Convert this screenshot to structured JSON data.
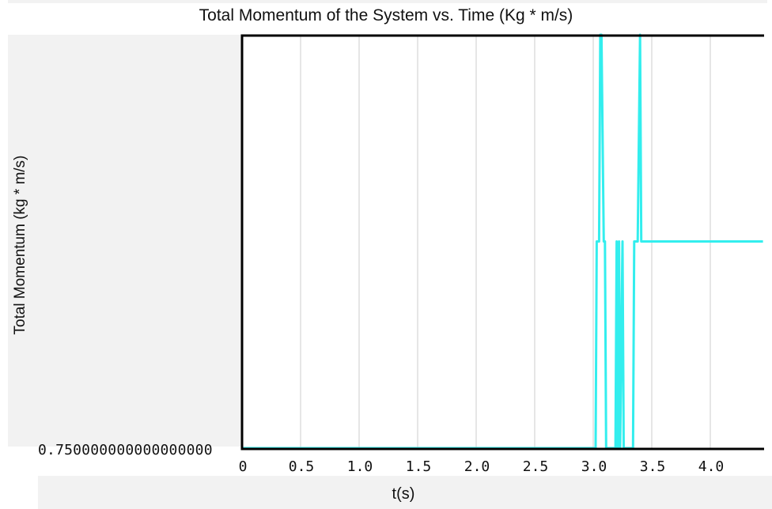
{
  "chart_data": {
    "type": "line",
    "title": "Total Momentum of the System vs. Time (Kg * m/s)",
    "xlabel": "t(s)",
    "ylabel": "Total Momentum (kg * m/s)",
    "y_tick_label": "0.750000000000000000",
    "xlim": [
      0,
      4.45
    ],
    "x_ticks": [
      "0",
      "0.5",
      "1.0",
      "1.5",
      "2.0",
      "2.5",
      "3.0",
      "3.5",
      "4.0"
    ],
    "grid": "vertical",
    "series": [
      {
        "color": "#33eeee",
        "x": [
          0,
          3.02,
          3.03,
          3.05,
          3.06,
          3.07,
          3.09,
          3.1,
          3.11,
          3.19,
          3.2,
          3.21,
          3.22,
          3.23,
          3.25,
          3.26,
          3.27,
          3.34,
          3.35,
          3.36,
          3.38,
          3.4,
          3.41,
          4.45
        ],
        "y": [
          0,
          0,
          0.5,
          0.5,
          1,
          1,
          0.5,
          0.5,
          0,
          0,
          0.5,
          0,
          0.5,
          0,
          0.5,
          0,
          0,
          0,
          0.5,
          0.5,
          0.5,
          1,
          0.5,
          0.5
        ]
      }
    ]
  }
}
